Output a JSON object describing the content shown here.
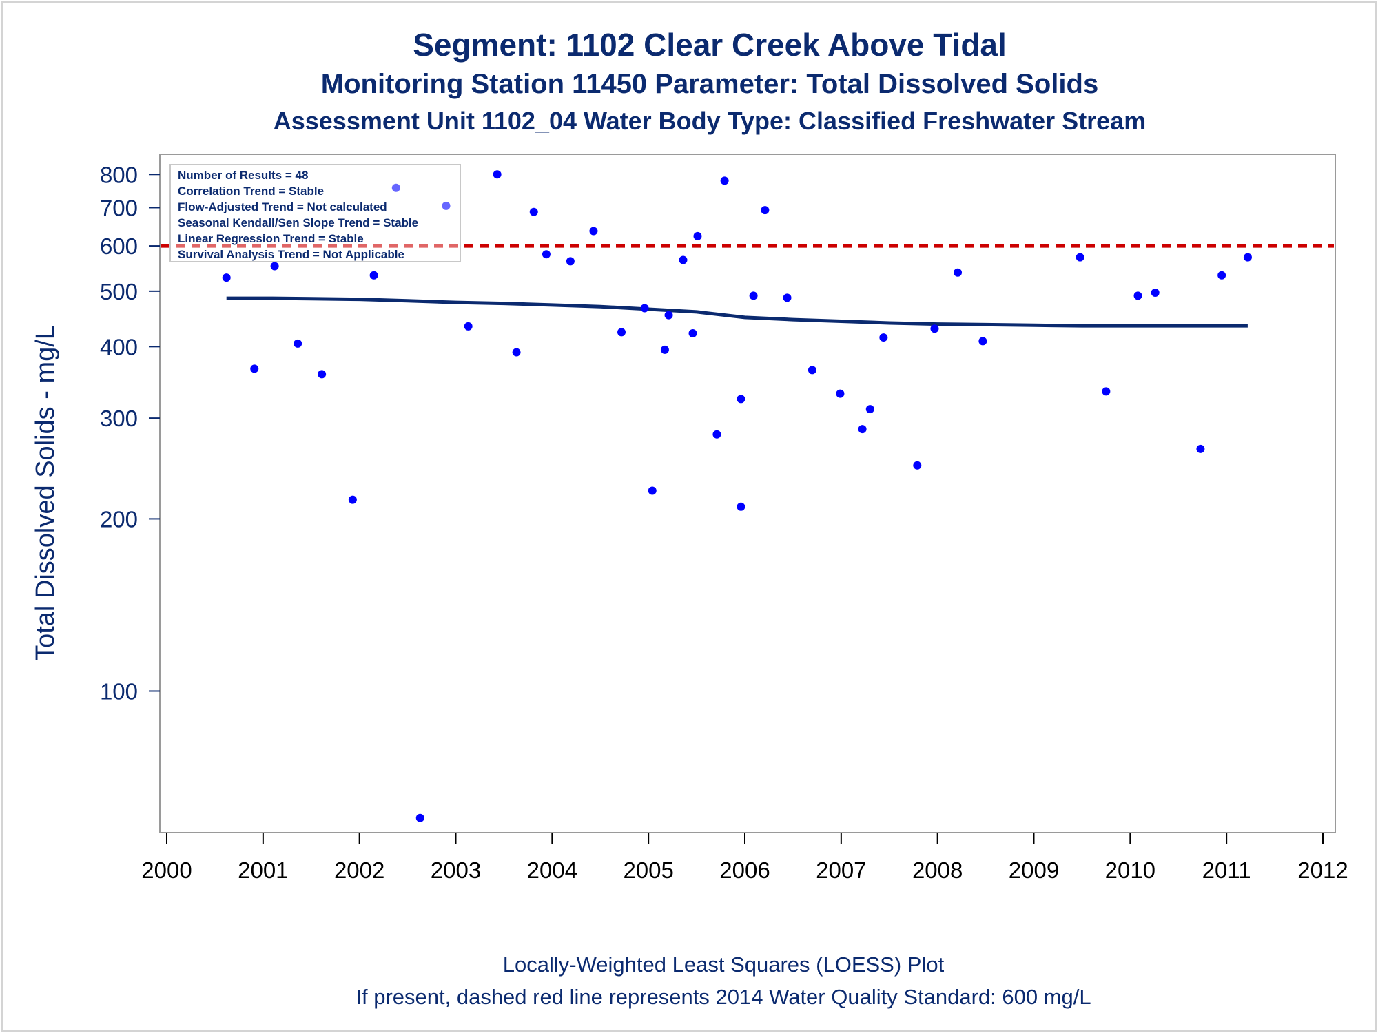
{
  "titles": {
    "line1": "Segment: 1102  Clear Creek Above Tidal",
    "line2": "Monitoring Station 11450 Parameter: Total Dissolved Solids",
    "line3": "Assessment Unit 1102_04   Water Body Type: Classified Freshwater Stream"
  },
  "footnotes": {
    "line1": "Locally-Weighted Least Squares (LOESS) Plot",
    "line2": "If present, dashed red line represents 2014 Water Quality Standard: 600   mg/L"
  },
  "stats_box": [
    "Number of Results = 48",
    "Correlation Trend = Stable",
    "Flow-Adjusted Trend = Not calculated",
    "Seasonal Kendall/Sen Slope Trend = Stable",
    "Linear Regression Trend = Stable",
    "Survival Analysis Trend = Not Applicable"
  ],
  "colors": {
    "points": "#0000ff",
    "loess": "#0b2a6f",
    "standard_line": "#cc0000",
    "text": "#0b2a6f"
  },
  "chart_data": {
    "type": "scatter",
    "ylabel": "Total Dissolved Solids - mg/L",
    "xlabel": "",
    "y_scale": "log",
    "xlim": [
      2000,
      2012
    ],
    "ylim": [
      58,
      830
    ],
    "x_ticks": [
      2000,
      2001,
      2002,
      2003,
      2004,
      2005,
      2006,
      2007,
      2008,
      2009,
      2010,
      2011,
      2012
    ],
    "y_ticks": [
      100,
      200,
      300,
      400,
      500,
      600,
      700,
      800
    ],
    "grid": false,
    "standard": {
      "value": 600,
      "style": "dashed",
      "color": "red"
    },
    "points": [
      {
        "x": 2000.62,
        "y": 528
      },
      {
        "x": 2000.91,
        "y": 366
      },
      {
        "x": 2001.12,
        "y": 553
      },
      {
        "x": 2001.36,
        "y": 405
      },
      {
        "x": 2001.61,
        "y": 358
      },
      {
        "x": 2001.93,
        "y": 216
      },
      {
        "x": 2002.15,
        "y": 533
      },
      {
        "x": 2002.38,
        "y": 758
      },
      {
        "x": 2002.63,
        "y": 60
      },
      {
        "x": 2002.9,
        "y": 705
      },
      {
        "x": 2003.13,
        "y": 434
      },
      {
        "x": 2003.43,
        "y": 800
      },
      {
        "x": 2003.63,
        "y": 391
      },
      {
        "x": 2003.81,
        "y": 688
      },
      {
        "x": 2003.94,
        "y": 580
      },
      {
        "x": 2004.19,
        "y": 564
      },
      {
        "x": 2004.43,
        "y": 637
      },
      {
        "x": 2004.72,
        "y": 424
      },
      {
        "x": 2004.96,
        "y": 467
      },
      {
        "x": 2005.04,
        "y": 224
      },
      {
        "x": 2005.17,
        "y": 395
      },
      {
        "x": 2005.21,
        "y": 454
      },
      {
        "x": 2005.36,
        "y": 567
      },
      {
        "x": 2005.46,
        "y": 422
      },
      {
        "x": 2005.51,
        "y": 624
      },
      {
        "x": 2005.71,
        "y": 281
      },
      {
        "x": 2005.79,
        "y": 780
      },
      {
        "x": 2005.96,
        "y": 324
      },
      {
        "x": 2005.96,
        "y": 210
      },
      {
        "x": 2006.09,
        "y": 491
      },
      {
        "x": 2006.21,
        "y": 693
      },
      {
        "x": 2006.44,
        "y": 487
      },
      {
        "x": 2006.7,
        "y": 364
      },
      {
        "x": 2006.99,
        "y": 331
      },
      {
        "x": 2007.22,
        "y": 287
      },
      {
        "x": 2007.3,
        "y": 311
      },
      {
        "x": 2007.44,
        "y": 415
      },
      {
        "x": 2007.79,
        "y": 248
      },
      {
        "x": 2007.97,
        "y": 430
      },
      {
        "x": 2008.21,
        "y": 539
      },
      {
        "x": 2008.47,
        "y": 409
      },
      {
        "x": 2009.48,
        "y": 573
      },
      {
        "x": 2009.75,
        "y": 334
      },
      {
        "x": 2010.08,
        "y": 491
      },
      {
        "x": 2010.26,
        "y": 497
      },
      {
        "x": 2010.73,
        "y": 265
      },
      {
        "x": 2010.95,
        "y": 533
      },
      {
        "x": 2011.22,
        "y": 573
      }
    ],
    "loess": {
      "x": [
        2000.62,
        2001.1,
        2001.5,
        2002.0,
        2002.5,
        2003.0,
        2003.5,
        2004.0,
        2004.5,
        2005.0,
        2005.5,
        2006.0,
        2006.5,
        2007.0,
        2007.5,
        2008.0,
        2008.5,
        2009.0,
        2009.5,
        2010.0,
        2010.5,
        2011.0,
        2011.22
      ],
      "y": [
        486,
        486,
        485,
        484,
        481,
        478,
        476,
        473,
        470,
        465,
        460,
        450,
        446,
        443,
        440,
        438,
        437,
        436,
        435,
        435,
        435,
        435,
        435
      ]
    }
  }
}
